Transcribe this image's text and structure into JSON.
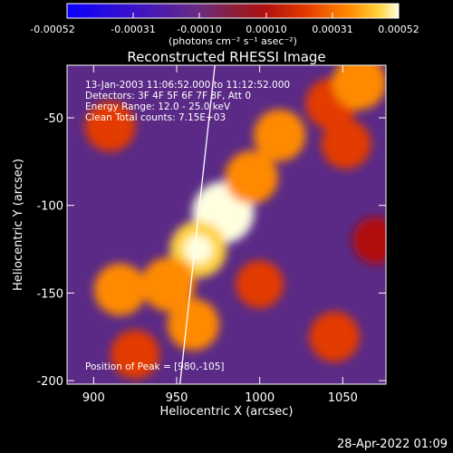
{
  "colorbar": {
    "ticks": [
      "-0.00052",
      "-0.00031",
      "-0.00010",
      "0.00010",
      "0.00031",
      "0.00052"
    ],
    "unit_label": "(photons cm⁻² s⁻¹ asec⁻²)",
    "colors": [
      "#0a00ff",
      "#3a12c8",
      "#5a1fa0",
      "#6a2b80",
      "#8a1f3a",
      "#b01010",
      "#e33a00",
      "#ff8a00",
      "#ffd23a",
      "#ffffe0"
    ]
  },
  "chart": {
    "title": "Reconstructed RHESSI Image",
    "xlabel": "Heliocentric X (arcsec)",
    "ylabel": "Heliocentric Y (arcsec)"
  },
  "overlay": {
    "line1": "13-Jan-2003 11:06:52.000 to 11:12:52.000",
    "line2": "Detectors: 3F 4F 5F 6F 7F 8F, Att 0",
    "line3": "Energy Range: 12.0 - 25.0 keV",
    "line4": "Clean     Total counts: 7.15E+03",
    "peak": "Position of Peak = [980,-105]"
  },
  "timestamp": "28-Apr-2022 01:09",
  "chart_data": {
    "type": "heatmap",
    "title": "Reconstructed RHESSI Image",
    "xlabel": "Heliocentric X (arcsec)",
    "ylabel": "Heliocentric Y (arcsec)",
    "xlim": [
      884,
      1076
    ],
    "ylim": [
      -202,
      -20
    ],
    "xticks": [
      900,
      950,
      1000,
      1050
    ],
    "yticks": [
      -50,
      -100,
      -150,
      -200
    ],
    "colorbar_range": [
      -0.00052,
      0.00052
    ],
    "peak": [
      980,
      -105
    ],
    "limb_line": [
      [
        952,
        -202
      ],
      [
        973,
        -20
      ]
    ],
    "sources": [
      {
        "x": 978,
        "y": -104,
        "value": 0.00052
      },
      {
        "x": 963,
        "y": -125,
        "value": 0.00038
      },
      {
        "x": 945,
        "y": -145,
        "value": 0.0003
      },
      {
        "x": 916,
        "y": -148,
        "value": 0.00025
      },
      {
        "x": 995,
        "y": -84,
        "value": 0.00028
      },
      {
        "x": 1012,
        "y": -60,
        "value": 0.00024
      },
      {
        "x": 1043,
        "y": -42,
        "value": 0.00022
      },
      {
        "x": 1060,
        "y": -30,
        "value": 0.0003
      },
      {
        "x": 1052,
        "y": -65,
        "value": 0.00018
      },
      {
        "x": 1045,
        "y": -175,
        "value": 0.0002
      },
      {
        "x": 960,
        "y": -168,
        "value": 0.00024
      },
      {
        "x": 925,
        "y": -185,
        "value": 0.00016
      },
      {
        "x": 910,
        "y": -55,
        "value": 0.0002
      },
      {
        "x": 1000,
        "y": -145,
        "value": 0.00012
      },
      {
        "x": 1070,
        "y": -120,
        "value": 0.0001
      }
    ]
  }
}
